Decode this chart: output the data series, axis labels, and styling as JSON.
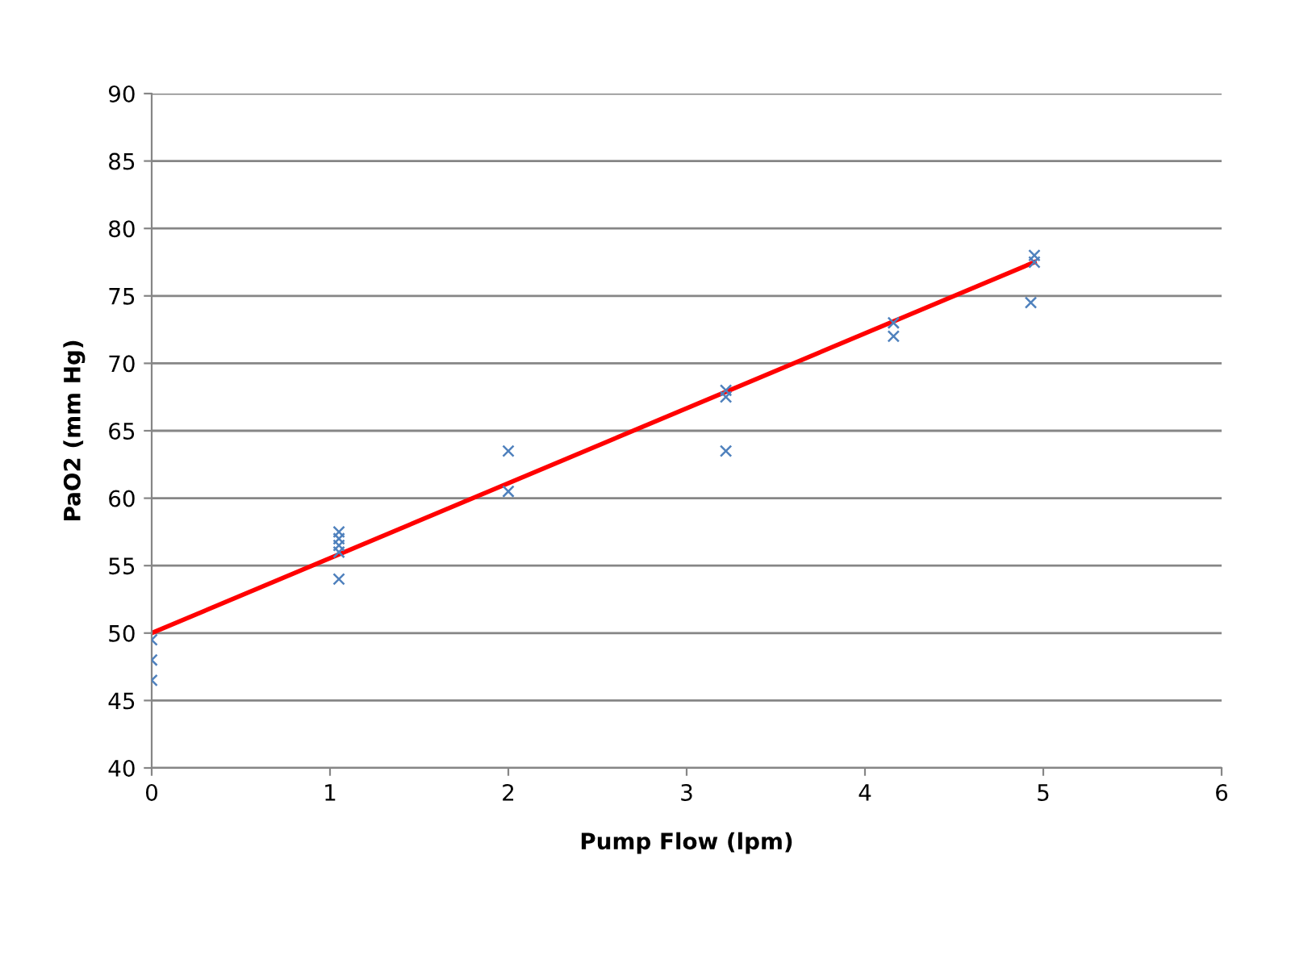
{
  "chart_data": {
    "type": "scatter",
    "xlabel": "Pump Flow (lpm)",
    "ylabel": "PaO2 (mm Hg)",
    "xlim": [
      0,
      6
    ],
    "xticks": [
      0,
      1,
      2,
      3,
      4,
      5,
      6
    ],
    "ylim": [
      40,
      90
    ],
    "yticks": [
      40,
      45,
      50,
      55,
      60,
      65,
      70,
      75,
      80,
      85,
      90
    ],
    "grid": "y",
    "series": [
      {
        "color": "#4f81bd",
        "marker": "cross",
        "x": [
          0,
          0,
          0,
          1.05,
          1.05,
          1.05,
          1.05,
          1.05,
          2,
          2,
          3.22,
          3.22,
          3.22,
          4.16,
          4.16,
          4.95,
          4.95,
          4.93
        ],
        "values": [
          49.5,
          48,
          46.5,
          57.5,
          57,
          56.5,
          56,
          54,
          63.5,
          60.5,
          68,
          67.5,
          63.5,
          73,
          72,
          78,
          77.5,
          74.5
        ]
      },
      {
        "type": "line",
        "color": "#ff0000",
        "marker": "none",
        "x": [
          0,
          4.95
        ],
        "values": [
          50,
          77.5
        ]
      }
    ]
  }
}
